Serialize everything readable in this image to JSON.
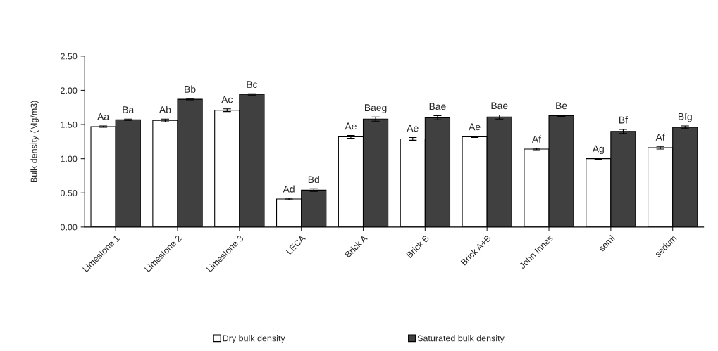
{
  "chart_data": {
    "type": "bar",
    "ylabel": "Bulk density (Mg/m3)",
    "categories": [
      "Limestone 1",
      "Limestone 2",
      "Limestone 3",
      "LECA",
      "Brick A",
      "Brick B",
      "Brick A+B",
      "John Innes",
      "semi",
      "sedum"
    ],
    "series": [
      {
        "name": "Dry bulk density",
        "color": "#ffffff",
        "values": [
          1.47,
          1.56,
          1.71,
          0.41,
          1.32,
          1.29,
          1.32,
          1.14,
          1.0,
          1.16
        ],
        "errors": [
          0.01,
          0.02,
          0.02,
          0.01,
          0.02,
          0.02,
          0.01,
          0.01,
          0.01,
          0.02
        ],
        "value_labels": [
          "Aa",
          "Ab",
          "Ac",
          "Ad",
          "Ae",
          "Ae",
          "Ae",
          "Af",
          "Ag",
          "Af"
        ]
      },
      {
        "name": "Saturated bulk density",
        "color": "#404040",
        "values": [
          1.57,
          1.87,
          1.94,
          0.54,
          1.58,
          1.6,
          1.61,
          1.63,
          1.4,
          1.46
        ],
        "errors": [
          0.01,
          0.01,
          0.01,
          0.02,
          0.03,
          0.03,
          0.03,
          0.01,
          0.03,
          0.02
        ],
        "value_labels": [
          "Ba",
          "Bb",
          "Bc",
          "Bd",
          "Baeg",
          "Bae",
          "Bae",
          "Be",
          "Bf",
          "Bfg"
        ]
      }
    ],
    "ylim": [
      0,
      2.5
    ],
    "yticks": [
      {
        "value": 0,
        "label": "0.00"
      },
      {
        "value": 0.5,
        "label": "0.50"
      },
      {
        "value": 1,
        "label": "1.00"
      },
      {
        "value": 1.5,
        "label": "1.50"
      },
      {
        "value": 2,
        "label": "2.00"
      },
      {
        "value": 2.5,
        "label": "2.50"
      }
    ],
    "legend": "bottom"
  }
}
